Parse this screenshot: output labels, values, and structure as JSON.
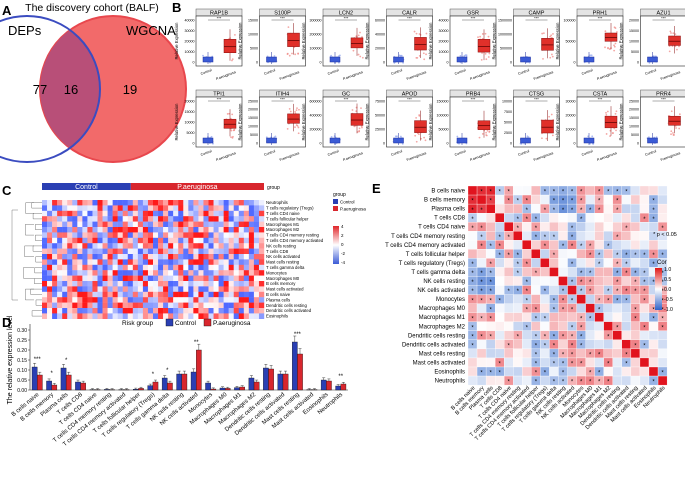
{
  "panel_letters": {
    "a": "A",
    "b": "B",
    "c": "C",
    "d": "D",
    "e": "E"
  },
  "venn": {
    "title": "The discovery cohort (BALF)",
    "left_label": "DEPs",
    "right_label": "WGCNA",
    "left_only": "77",
    "overlap": "16",
    "right_only": "19",
    "left_color": "#3b4cc0",
    "right_color": "#e8474d"
  },
  "boxplots": {
    "ylabel": "Relative Expression",
    "groups": [
      "Control",
      "P.aeruginosa"
    ],
    "sig": "***",
    "control_color": "#3b5bd6",
    "case_color": "#e0302a",
    "row1": [
      "RAP1B",
      "S100P",
      "LCN2",
      "CALR",
      "GSR",
      "CAMP",
      "PRH1",
      "AZU1"
    ],
    "row2": [
      "TPI1",
      "ITIH4",
      "GC",
      "APOD",
      "PRB4",
      "CTSG",
      "CSTA",
      "PRR4"
    ],
    "ticks_row1": [
      [
        "40000",
        "30000",
        "20000",
        "10000",
        "0"
      ],
      [
        "15000",
        "10000",
        "5000",
        "0"
      ],
      [
        "300000",
        "200000",
        "100000",
        "0"
      ],
      [
        "60000",
        "40000",
        "20000",
        "0"
      ],
      [
        "40000",
        "30000",
        "20000",
        "10000",
        "0"
      ],
      [
        "1500000",
        "1000000",
        "500000",
        "0"
      ],
      [
        "100000",
        "50000",
        "0"
      ],
      [
        "20000",
        "15000",
        "10000",
        "5000",
        "0"
      ]
    ],
    "ticks_row2": [
      [
        "20000",
        "15000",
        "10000",
        "5000",
        "0"
      ],
      [
        "25000",
        "20000",
        "15000",
        "10000",
        "5000",
        "0"
      ],
      [
        "600000",
        "400000",
        "200000",
        "0"
      ],
      [
        "75000",
        "50000",
        "25000",
        "0"
      ],
      [
        "150000",
        "100000",
        "50000",
        "0"
      ],
      [
        "10000",
        "7500",
        "5000",
        "2500",
        "0"
      ],
      [
        "30000",
        "20000",
        "10000",
        "0"
      ],
      [
        "25000",
        "20000",
        "15000",
        "10000",
        "5000",
        "0"
      ]
    ]
  },
  "heatmap": {
    "control_label": "Control",
    "case_label": "P.aeruginosa",
    "group_title": "group",
    "legend_title": "group",
    "legend_control": "Control",
    "legend_case": "P.aeruginosa",
    "scale_ticks": [
      "4",
      "2",
      "0",
      "-2",
      "-4"
    ],
    "rows": [
      "Neutrophils",
      "T cells regulatory (Tregs)",
      "T cells CD4 naive",
      "T cells follicular helper",
      "Macrophages M1",
      "Macrophages M2",
      "T cells CD4 memory resting",
      "T cells CD4 memory activated",
      "NK cells resting",
      "T cells CD8",
      "NK cells activated",
      "Mast cells resting",
      "T cells gamma delta",
      "Monocytes",
      "Macrophages M0",
      "B cells memory",
      "Mast cells activated",
      "B cells naive",
      "Plasma cells",
      "Dendritic cells resting",
      "Dendritic cells activated",
      "Eosinophils"
    ]
  },
  "chart_data": {
    "type": "bar",
    "ylabel": "The relative expression level",
    "legend_title": "Risk group",
    "ylim": [
      0,
      0.3
    ],
    "yticks": [
      "0.00",
      "0.05",
      "0.10",
      "0.15",
      "0.20",
      "0.25",
      "0.30"
    ],
    "categories": [
      "B cells naive",
      "B cells memory",
      "Plasma cells",
      "T cells CD8",
      "T cells CD4 naive",
      "T cells CD4 memory resting",
      "T cells CD4 memory activated",
      "T cells follicular helper",
      "T cells regulatory (Tregs)",
      "T cells gamma delta",
      "NK cells resting",
      "NK cells activated",
      "Monocytes",
      "Macrophages M0",
      "Macrophages M1",
      "Macrophages M2",
      "Dendritic cells resting",
      "Dendritic cells activated",
      "Mast cells resting",
      "Mast cells activated",
      "Eosinophils",
      "Neutrophils"
    ],
    "series": [
      {
        "name": "Control",
        "color": "#2a3fb3",
        "values": [
          0.115,
          0.045,
          0.11,
          0.04,
          0.002,
          0.003,
          0.002,
          0.004,
          0.022,
          0.06,
          0.08,
          0.09,
          0.035,
          0.01,
          0.012,
          0.06,
          0.11,
          0.08,
          0.24,
          0.002,
          0.05,
          0.02
        ]
      },
      {
        "name": "P.aeruginosa",
        "color": "#d8262d",
        "values": [
          0.075,
          0.025,
          0.075,
          0.035,
          0.002,
          0.002,
          0.002,
          0.008,
          0.04,
          0.035,
          0.08,
          0.2,
          0.005,
          0.008,
          0.015,
          0.04,
          0.105,
          0.08,
          0.18,
          0.002,
          0.045,
          0.03
        ]
      }
    ],
    "sig_labels": {
      "0": "***",
      "1": "*",
      "2": "*",
      "8": "*",
      "9": "*",
      "11": "**",
      "18": "***",
      "21": "**"
    }
  },
  "corr": {
    "labels": [
      "B cells naive",
      "B cells memory",
      "Plasma cells",
      "T cells CD8",
      "T cells CD4 naive",
      "T cells CD4 memory resting",
      "T cells CD4 memory activated",
      "T cells follicular helper",
      "T cells regulatory (Tregs)",
      "T cells gamma delta",
      "NK cells resting",
      "NK cells activated",
      "Monocytes",
      "Macrophages M0",
      "Macrophages M1",
      "Macrophages M2",
      "Dendritic cells resting",
      "Dendritic cells activated",
      "Mast cells resting",
      "Mast cells activated",
      "Eosinophils",
      "Neutrophils"
    ],
    "legend_title": "Cor",
    "legend_ticks": [
      "1.0",
      "0.5",
      "0.0",
      "-0.5",
      "-1.0"
    ],
    "pnote": "* p < 0.05",
    "star": "*"
  }
}
